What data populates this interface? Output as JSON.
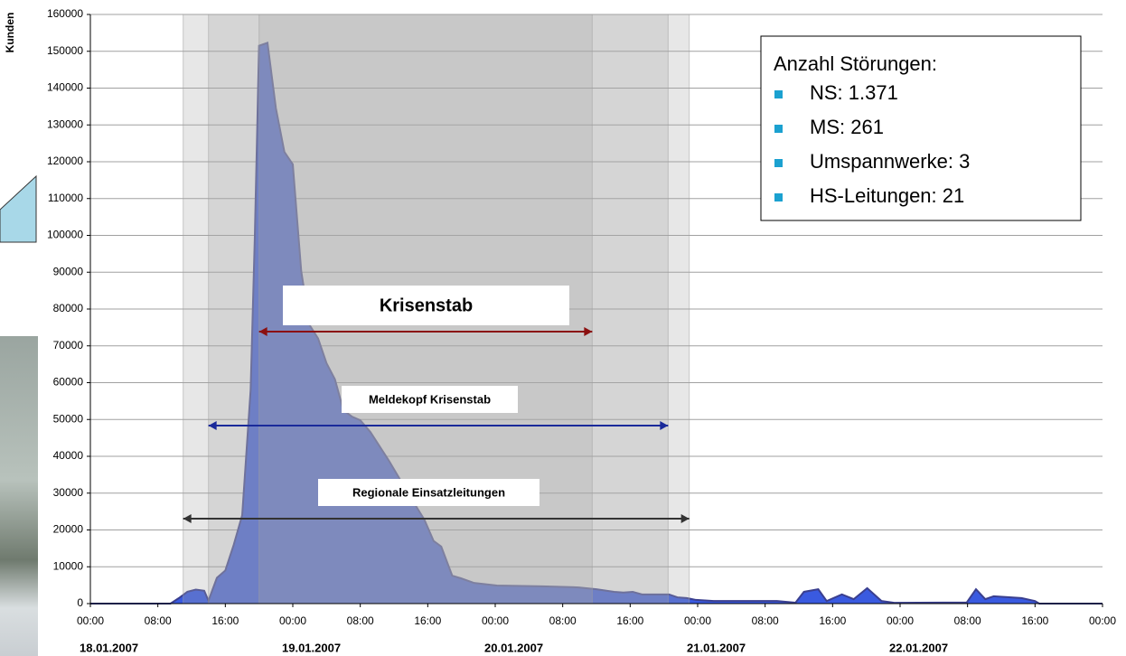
{
  "chart_data": {
    "type": "area",
    "y_label": "Kunden",
    "color": "#3a5ae0",
    "line_color": "#3a3f8f",
    "x": [
      0,
      9.5,
      10.5,
      11.5,
      12.5,
      13.5,
      14,
      15,
      16,
      17,
      18,
      19,
      19.5,
      20,
      21,
      22,
      23,
      24,
      25,
      26,
      27,
      28,
      29,
      30,
      31,
      32,
      33.2,
      35.4,
      37,
      38.6,
      39.6,
      40.7,
      41.6,
      42.9,
      43.9,
      45.5,
      48.2,
      53.6,
      57.9,
      60,
      62.1,
      63.2,
      64.3,
      65.4,
      68.6,
      69.6,
      70.7,
      71.8,
      73.9,
      81.4,
      83.6,
      84.6,
      86.3,
      87.3,
      89.1,
      90.5,
      92.1,
      93.8,
      95.4,
      103.9,
      105,
      106.1,
      107.1,
      110.4,
      112,
      112.5,
      120
    ],
    "values": [
      0,
      0,
      1500,
      3200,
      3800,
      3500,
      800,
      7000,
      9000,
      16000,
      24000,
      58000,
      100000,
      151500,
      152300,
      134500,
      122700,
      119300,
      90300,
      75600,
      72000,
      65300,
      60900,
      52500,
      50800,
      49800,
      46600,
      38800,
      32600,
      26500,
      22800,
      17000,
      15500,
      7600,
      6900,
      5600,
      4900,
      4700,
      4400,
      3900,
      3200,
      3000,
      3200,
      2500,
      2500,
      1700,
      1500,
      1000,
      700,
      700,
      250,
      3200,
      3900,
      700,
      2500,
      1200,
      4200,
      700,
      200,
      300,
      3900,
      1200,
      2000,
      1500,
      700,
      0,
      0
    ],
    "xlim": [
      0,
      120
    ],
    "xticks": [
      {
        "value": 0,
        "label": "00:00"
      },
      {
        "value": 8,
        "label": "08:00"
      },
      {
        "value": 16,
        "label": "16:00"
      },
      {
        "value": 24,
        "label": "00:00"
      },
      {
        "value": 32,
        "label": "08:00"
      },
      {
        "value": 40,
        "label": "16:00"
      },
      {
        "value": 48,
        "label": "00:00"
      },
      {
        "value": 56,
        "label": "08:00"
      },
      {
        "value": 64,
        "label": "16:00"
      },
      {
        "value": 72,
        "label": "00:00"
      },
      {
        "value": 80,
        "label": "08:00"
      },
      {
        "value": 88,
        "label": "16:00"
      },
      {
        "value": 96,
        "label": "00:00"
      },
      {
        "value": 104,
        "label": "08:00"
      },
      {
        "value": 112,
        "label": "16:00"
      },
      {
        "value": 120,
        "label": "00:00"
      }
    ],
    "xdates": [
      {
        "value": 0,
        "label": "18.01.2007"
      },
      {
        "value": 24,
        "label": "19.01.2007"
      },
      {
        "value": 48,
        "label": "20.01.2007"
      },
      {
        "value": 72,
        "label": "21.01.2007"
      },
      {
        "value": 96,
        "label": "22.01.2007"
      }
    ],
    "ylim": [
      0,
      160000
    ],
    "yticks": [
      0,
      10000,
      20000,
      30000,
      40000,
      50000,
      60000,
      70000,
      80000,
      90000,
      100000,
      110000,
      120000,
      130000,
      140000,
      150000,
      160000
    ],
    "grid": true,
    "periods": [
      {
        "label": "Regionale Einsatzleitungen",
        "start": 11,
        "end": 71,
        "color": "#333333"
      },
      {
        "label": "Meldekopf Krisenstab",
        "start": 14,
        "end": 68.5,
        "color": "#1a2a9a"
      },
      {
        "label": "Krisenstab",
        "start": 20,
        "end": 59.5,
        "color": "#8b1010"
      }
    ],
    "legend_box": {
      "title": "Anzahl Störungen:",
      "items": [
        "NS: 1.371",
        "MS: 261",
        "Umspannwerke: 3",
        "HS-Leitungen: 21"
      ],
      "marker_color": "#1ba1d0"
    }
  }
}
